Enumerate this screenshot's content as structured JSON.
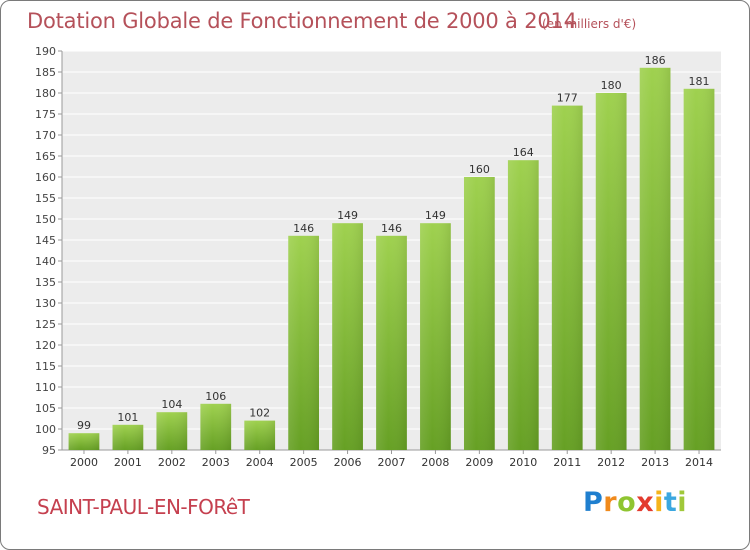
{
  "title": "Dotation Globale de Fonctionnement de 2000 à 2014",
  "subtitle": "(en milliers d'€)",
  "commune": "SAINT-PAUL-EN-FORêT",
  "logo": [
    "P",
    "r",
    "o",
    "x",
    "i",
    "t",
    "i"
  ],
  "colors": {
    "bar_light": "#9fd14f",
    "bar_dark": "#66a024",
    "grid": "#e2e2e2",
    "plot_bg": "#ececec",
    "title": "#b5515a"
  },
  "chart_data": {
    "type": "bar",
    "categories": [
      "2000",
      "2001",
      "2002",
      "2003",
      "2004",
      "2005",
      "2006",
      "2007",
      "2008",
      "2009",
      "2010",
      "2011",
      "2012",
      "2013",
      "2014"
    ],
    "values": [
      99,
      101,
      104,
      106,
      102,
      146,
      149,
      146,
      149,
      160,
      164,
      177,
      180,
      186,
      181
    ],
    "title": "Dotation Globale de Fonctionnement de 2000 à 2014",
    "ylabel": "",
    "xlabel": "",
    "ylim": [
      95,
      190
    ],
    "yticks": [
      95,
      100,
      105,
      110,
      115,
      120,
      125,
      130,
      135,
      140,
      145,
      150,
      155,
      160,
      165,
      170,
      175,
      180,
      185,
      190
    ],
    "grid": true,
    "legend": "none"
  }
}
